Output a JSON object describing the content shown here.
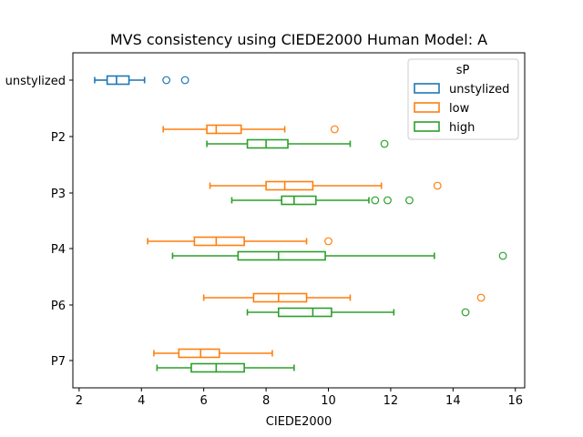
{
  "chart_data": {
    "type": "boxplot",
    "orientation": "horizontal",
    "title": "MVS consistency using CIEDE2000 Human Model: A",
    "xlabel": "CIEDE2000",
    "ylabel": "",
    "xlim": [
      1.8,
      16.3
    ],
    "xticks": [
      2,
      4,
      6,
      8,
      10,
      12,
      14,
      16
    ],
    "categories": [
      "unstylized",
      "P2",
      "P3",
      "P4",
      "P6",
      "P7"
    ],
    "legend": {
      "title": "sP",
      "position": "top-right",
      "entries": [
        "unstylized",
        "low",
        "high"
      ]
    },
    "colors": {
      "unstylized": "#1f77b4",
      "low": "#ff7f0e",
      "high": "#2ca02c"
    },
    "series": [
      {
        "name": "unstylized",
        "boxes": [
          {
            "category": "unstylized",
            "whislo": 2.5,
            "q1": 2.9,
            "med": 3.2,
            "q3": 3.6,
            "whishi": 4.1,
            "fliers": [
              4.8,
              5.4
            ]
          }
        ]
      },
      {
        "name": "low",
        "boxes": [
          {
            "category": "P2",
            "whislo": 4.7,
            "q1": 6.1,
            "med": 6.4,
            "q3": 7.2,
            "whishi": 8.6,
            "fliers": [
              10.2
            ]
          },
          {
            "category": "P3",
            "whislo": 6.2,
            "q1": 8.0,
            "med": 8.6,
            "q3": 9.5,
            "whishi": 11.7,
            "fliers": [
              13.5
            ]
          },
          {
            "category": "P4",
            "whislo": 4.2,
            "q1": 5.7,
            "med": 6.4,
            "q3": 7.3,
            "whishi": 9.3,
            "fliers": [
              10.0
            ]
          },
          {
            "category": "P6",
            "whislo": 6.0,
            "q1": 7.6,
            "med": 8.4,
            "q3": 9.3,
            "whishi": 10.7,
            "fliers": [
              14.9
            ]
          },
          {
            "category": "P7",
            "whislo": 4.4,
            "q1": 5.2,
            "med": 5.9,
            "q3": 6.5,
            "whishi": 8.2,
            "fliers": []
          }
        ]
      },
      {
        "name": "high",
        "boxes": [
          {
            "category": "P2",
            "whislo": 6.1,
            "q1": 7.4,
            "med": 8.0,
            "q3": 8.7,
            "whishi": 10.7,
            "fliers": [
              11.8
            ]
          },
          {
            "category": "P3",
            "whislo": 6.9,
            "q1": 8.5,
            "med": 8.9,
            "q3": 9.6,
            "whishi": 11.3,
            "fliers": [
              11.5,
              11.9,
              12.6
            ]
          },
          {
            "category": "P4",
            "whislo": 5.0,
            "q1": 7.1,
            "med": 8.4,
            "q3": 9.9,
            "whishi": 13.4,
            "fliers": [
              15.6
            ]
          },
          {
            "category": "P6",
            "whislo": 7.4,
            "q1": 8.4,
            "med": 9.5,
            "q3": 10.1,
            "whishi": 12.1,
            "fliers": [
              14.4
            ]
          },
          {
            "category": "P7",
            "whislo": 4.5,
            "q1": 5.6,
            "med": 6.4,
            "q3": 7.3,
            "whishi": 8.9,
            "fliers": []
          }
        ]
      }
    ]
  }
}
